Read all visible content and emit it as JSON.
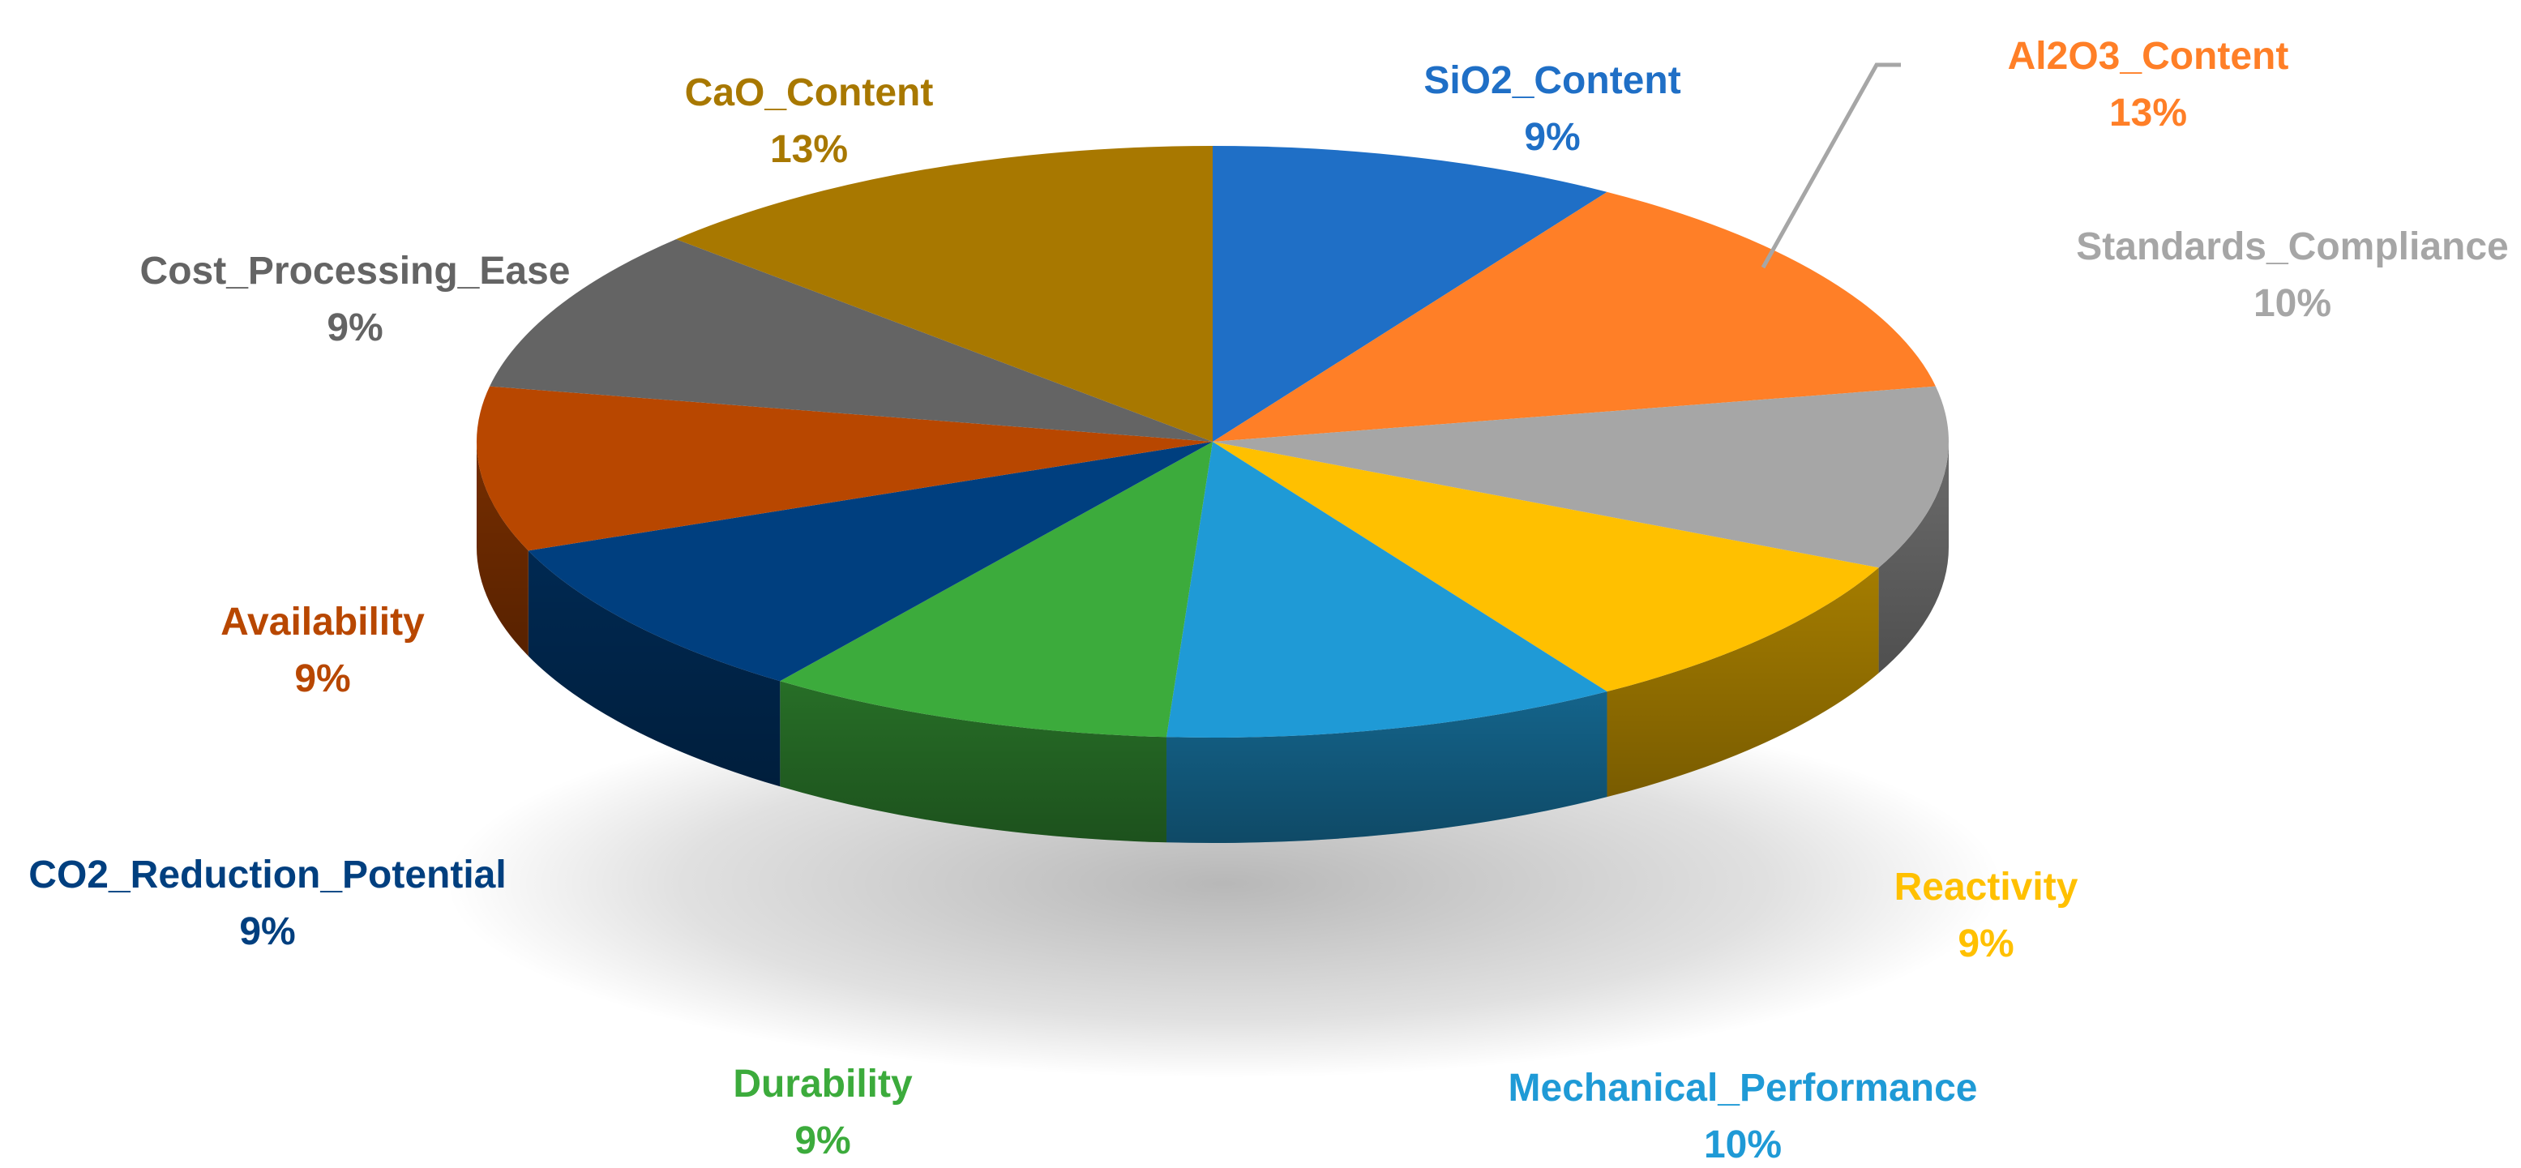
{
  "chart_data": {
    "type": "pie",
    "style": "3d",
    "title": "",
    "categories": [
      "SiO2_Content",
      "Al2O3_Content",
      "Standards_Compliance",
      "Reactivity",
      "Mechanical_Performance",
      "Durability",
      "CO2_Reduction_Potential",
      "Availability",
      "Cost_Processing_Ease",
      "CaO_Content"
    ],
    "values": [
      9,
      13,
      10,
      9,
      10,
      9,
      9,
      9,
      9,
      13
    ],
    "percent_labels": [
      "9%",
      "13%",
      "10%",
      "9%",
      "10%",
      "9%",
      "9%",
      "9%",
      "9%",
      "13%"
    ],
    "colors": [
      "#1f6fc6",
      "#ff7f27",
      "#a6a6a6",
      "#ffc000",
      "#1f9ad6",
      "#3cab3c",
      "#003f7f",
      "#b84700",
      "#646464",
      "#a87800"
    ],
    "legend": "none"
  }
}
